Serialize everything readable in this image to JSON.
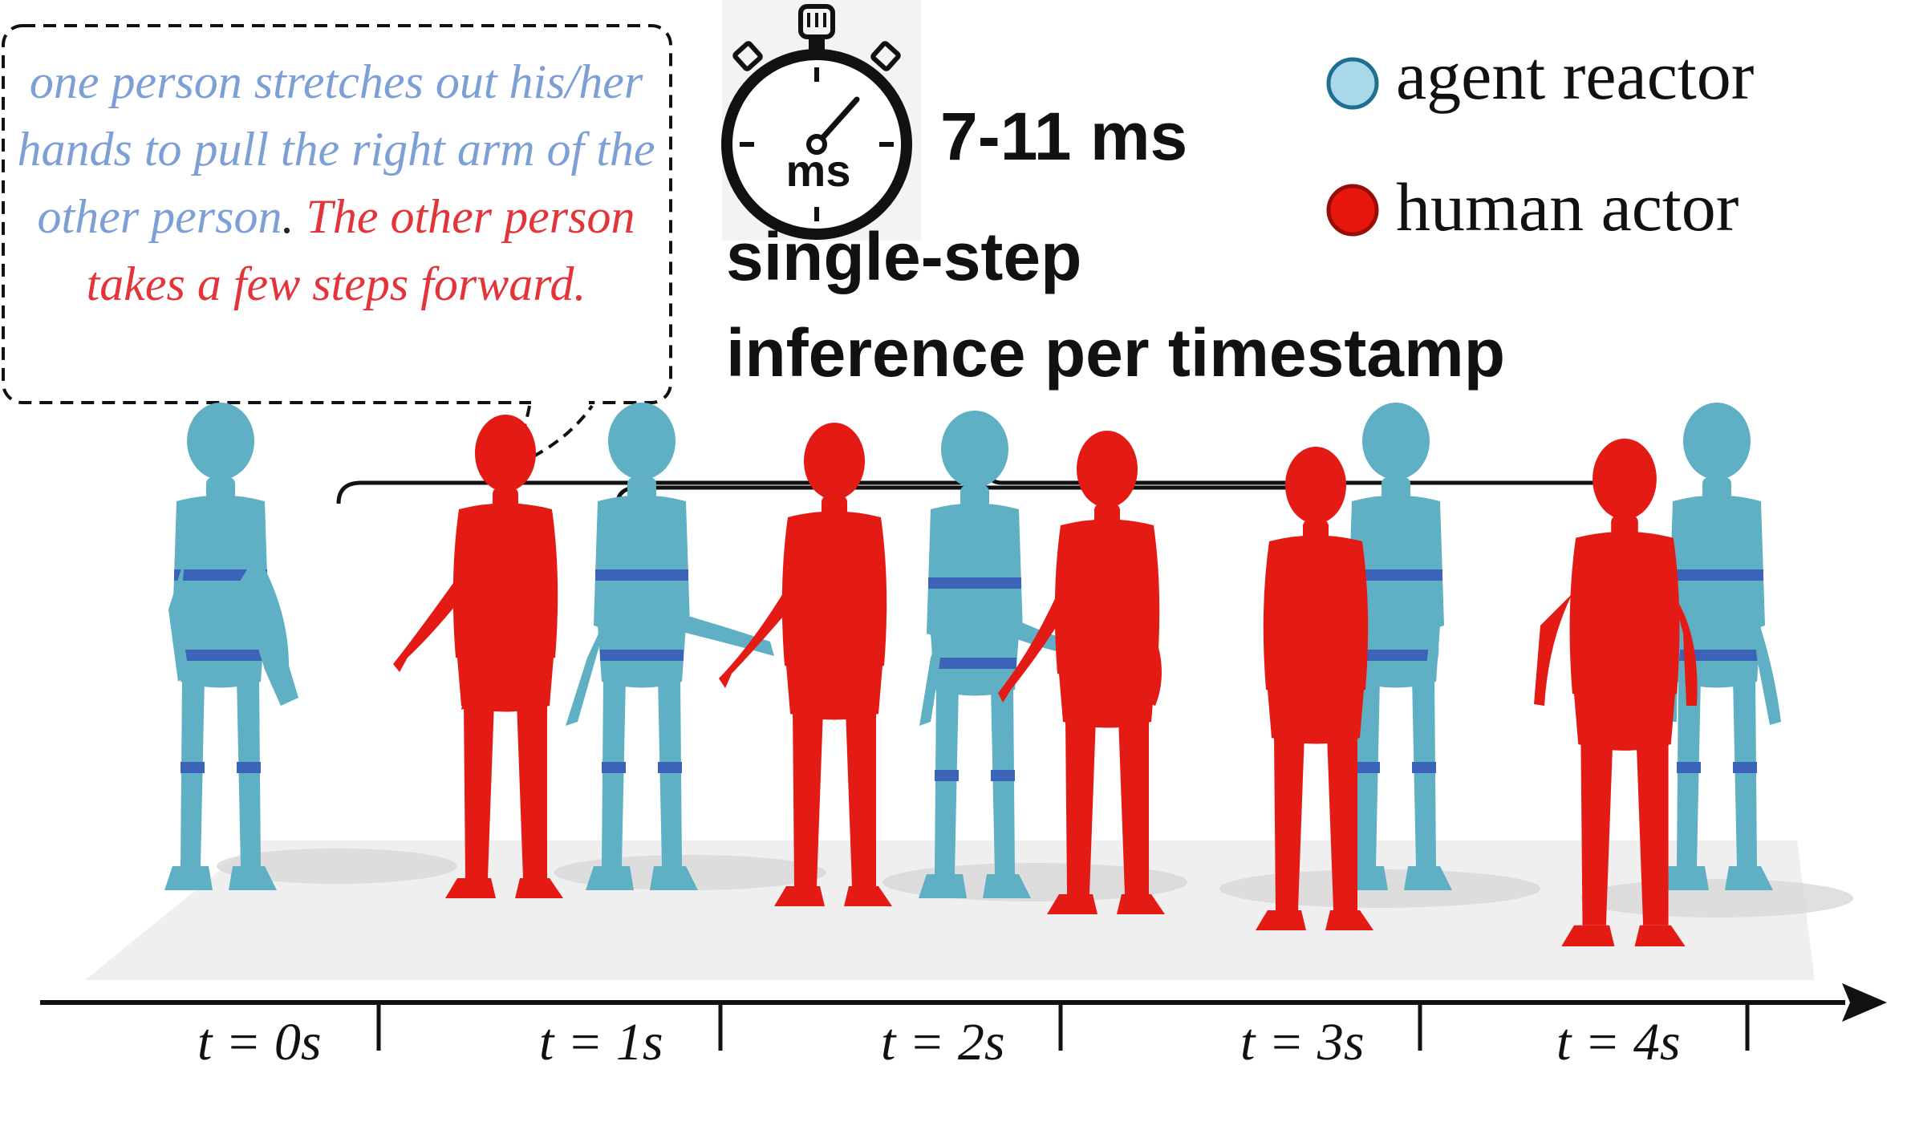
{
  "caption": {
    "part1": "one person stretches out his/her hands to pull the right arm of the other person",
    "period": ".",
    "part2": "The other person takes a few steps forward."
  },
  "timer": {
    "icon_label": "ms",
    "latency": "7-11 ms",
    "description_line1": "single-step",
    "description_line2": "inference per timestamp"
  },
  "legend": [
    {
      "label": "agent reactor",
      "color": "#a8d8ea"
    },
    {
      "label": "human actor",
      "color": "#e8170e"
    }
  ],
  "colors": {
    "agent": "#5fb0c4",
    "agent_joint": "#3b63b8",
    "human": "#e31b14",
    "floor": "#efefef"
  },
  "timeline": {
    "ticks": [
      "t = 0s",
      "t = 1s",
      "t = 2s",
      "t = 3s",
      "t = 4s"
    ]
  }
}
